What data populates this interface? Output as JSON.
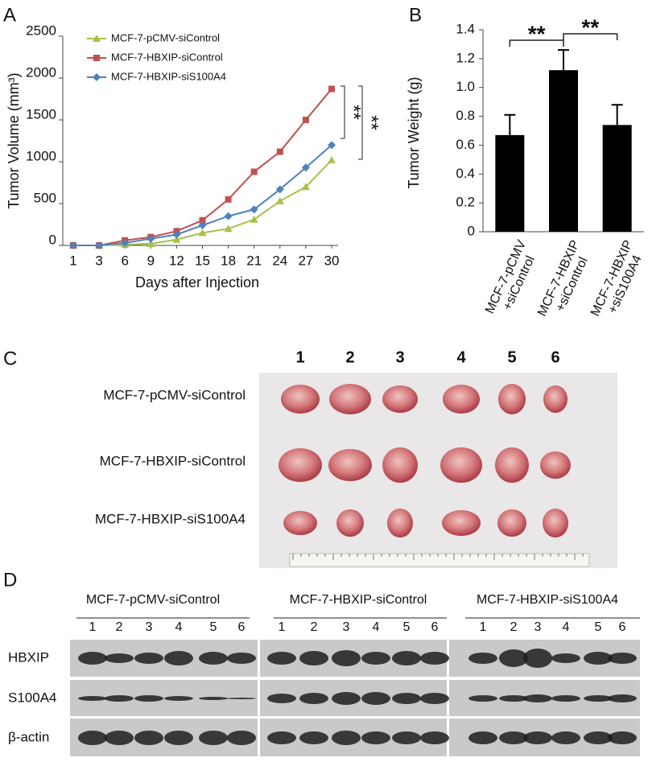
{
  "panel_labels": [
    "A",
    "B",
    "C",
    "D"
  ],
  "chart_data": [
    {
      "type": "line",
      "x_label": "Days after Injection",
      "y_label": "Tumor Volume (mm³)",
      "categories": [
        "1",
        "3",
        "6",
        "9",
        "12",
        "15",
        "18",
        "21",
        "24",
        "27",
        "30"
      ],
      "series": [
        {
          "name": "MCF-7-pCMV-siControl",
          "color": "#a6c24a",
          "marker": "triangle",
          "values": [
            0,
            0,
            10,
            20,
            70,
            150,
            200,
            310,
            530,
            700,
            1020
          ]
        },
        {
          "name": "MCF-7-HBXIP-siControl",
          "color": "#c0504d",
          "marker": "square",
          "values": [
            0,
            0,
            60,
            100,
            170,
            300,
            550,
            880,
            1120,
            1500,
            1870
          ]
        },
        {
          "name": "MCF-7-HBXIP-siS100A4",
          "color": "#4f81bd",
          "marker": "diamond",
          "values": [
            0,
            0,
            30,
            80,
            130,
            240,
            350,
            430,
            670,
            930,
            1200
          ]
        }
      ],
      "ylim": [
        0,
        2500
      ],
      "yticks": [
        0,
        500,
        1000,
        1500,
        2000,
        2500
      ],
      "annotations": [
        "**",
        "**"
      ]
    },
    {
      "type": "bar",
      "y_label": "Tumor Weight (g)",
      "categories": [
        "MCF-7-pCMV\n+siControl",
        "MCF-7-HBXIP\n+siControl",
        "MCF-7-HBXIP\n+siS100A4"
      ],
      "values": [
        0.67,
        1.12,
        0.74
      ],
      "errors": [
        0.14,
        0.14,
        0.14
      ],
      "color": "#000000",
      "ylim": [
        0,
        1.4
      ],
      "yticks": [
        0,
        {
          "value": 0.2,
          "label": "0.2"
        },
        {
          "value": 0.4,
          "label": "0.4"
        },
        {
          "value": 0.6,
          "label": "0.6"
        },
        {
          "value": 0.8,
          "label": "0.8"
        },
        {
          "value": 1,
          "label": "1.0"
        },
        {
          "value": 1.2,
          "label": "1.2"
        },
        {
          "value": 1.4,
          "label": "1.4"
        }
      ],
      "annotations": [
        "**",
        "**"
      ]
    }
  ],
  "photo": {
    "columns": [
      "1",
      "2",
      "3",
      "4",
      "5",
      "6"
    ],
    "rows": [
      "MCF-7-pCMV-siControl",
      "MCF-7-HBXIP-siControl",
      "MCF-7-HBXIP-siS100A4"
    ]
  },
  "blot": {
    "groups": [
      "MCF-7-pCMV-siControl",
      "MCF-7-HBXIP-siControl",
      "MCF-7-HBXIP-siS100A4"
    ],
    "lanes": [
      "1",
      "2",
      "3",
      "4",
      "5",
      "6"
    ],
    "rows": [
      "HBXIP",
      "S100A4",
      "β-actin"
    ]
  }
}
